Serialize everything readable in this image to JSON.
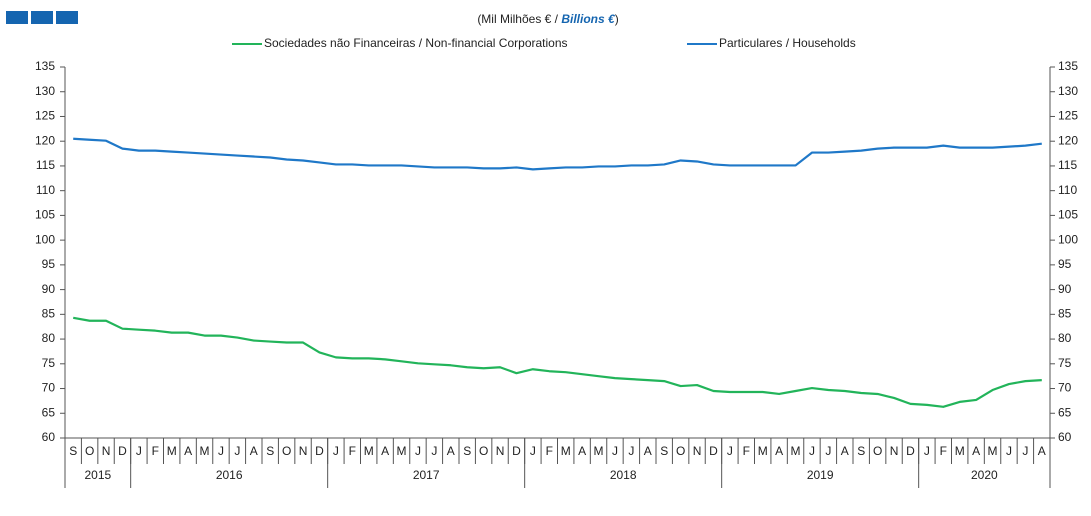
{
  "chart_data": {
    "type": "line",
    "subtitle": "(Mil Milhões € / ",
    "subtitle_en": "Billions  €",
    "subtitle_end": ")",
    "categories": [
      "S",
      "O",
      "N",
      "D",
      "J",
      "F",
      "M",
      "A",
      "M",
      "J",
      "J",
      "A",
      "S",
      "O",
      "N",
      "D",
      "J",
      "F",
      "M",
      "A",
      "M",
      "J",
      "J",
      "A",
      "S",
      "O",
      "N",
      "D",
      "J",
      "F",
      "M",
      "A",
      "M",
      "J",
      "J",
      "A",
      "S",
      "O",
      "N",
      "D",
      "J",
      "F",
      "M",
      "A",
      "M",
      "J",
      "J",
      "A",
      "S",
      "O",
      "N",
      "D",
      "J",
      "F",
      "M",
      "A",
      "M",
      "J",
      "J",
      "A"
    ],
    "years": [
      "2015",
      "2016",
      "2017",
      "2018",
      "2019",
      "2020"
    ],
    "series": [
      {
        "name": "Sociedades não Financeiras / Non-financial Corporations",
        "color": "#22b45a",
        "values": [
          84.3,
          83.7,
          83.7,
          82.1,
          81.9,
          81.7,
          81.3,
          81.3,
          80.7,
          80.7,
          80.3,
          79.7,
          79.5,
          79.3,
          79.3,
          77.3,
          76.3,
          76.1,
          76.1,
          75.9,
          75.5,
          75.1,
          74.9,
          74.7,
          74.3,
          74.1,
          74.3,
          73.1,
          73.9,
          73.5,
          73.3,
          72.9,
          72.5,
          72.1,
          71.9,
          71.7,
          71.5,
          70.5,
          70.7,
          69.5,
          69.3,
          69.3,
          69.3,
          68.9,
          69.5,
          70.1,
          69.7,
          69.5,
          69.1,
          68.9,
          68.1,
          66.9,
          66.7,
          66.3,
          67.3,
          67.7,
          69.7,
          70.9,
          71.5,
          71.7
        ]
      },
      {
        "name": "Particulares / Households",
        "color": "#1f78c8",
        "values": [
          120.5,
          120.3,
          120.1,
          118.5,
          118.1,
          118.1,
          117.9,
          117.7,
          117.5,
          117.3,
          117.1,
          116.9,
          116.7,
          116.3,
          116.1,
          115.7,
          115.3,
          115.3,
          115.1,
          115.1,
          115.1,
          114.9,
          114.7,
          114.7,
          114.7,
          114.5,
          114.5,
          114.7,
          114.3,
          114.5,
          114.7,
          114.7,
          114.9,
          114.9,
          115.1,
          115.1,
          115.3,
          116.1,
          115.9,
          115.3,
          115.1,
          115.1,
          115.1,
          115.1,
          115.1,
          117.7,
          117.7,
          117.9,
          118.1,
          118.5,
          118.7,
          118.7,
          118.7,
          119.1,
          118.7,
          118.7,
          118.7,
          118.9,
          119.1,
          119.5
        ]
      }
    ],
    "ylim": [
      60,
      135
    ],
    "yticks": [
      60,
      65,
      70,
      75,
      80,
      85,
      90,
      95,
      100,
      105,
      110,
      115,
      120,
      125,
      130,
      135
    ]
  }
}
